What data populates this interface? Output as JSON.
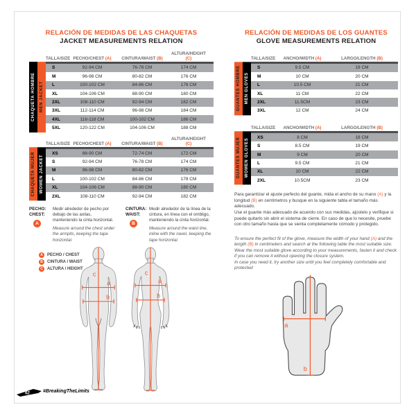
{
  "accent_orange": "#f05a28",
  "row_gray": "#a7a9ac",
  "jackets": {
    "title_es": "RELACIÓN DE MEDIDAS DE LAS CHAQUETAS",
    "title_en": "JACKET MEASUREMENTS RELATION",
    "header": {
      "size": "TALLA/SIZE",
      "chest": "PECHO/CHEST",
      "chest_letter": "(A)",
      "waist": "CINTURA/WAIST",
      "waist_letter": "(B)",
      "height": "ALTURA/HEIGHT",
      "height_letter": "(C)"
    },
    "men": {
      "strip_es": "CHAQUETA HOMBRE",
      "strip_en": "MEN JACKET",
      "rows": [
        [
          "S",
          "92-94 CM",
          "76-78 CM",
          "174 CM"
        ],
        [
          "M",
          "96-98 CM",
          "80-82 CM",
          "176 CM"
        ],
        [
          "L",
          "100-102 CM",
          "84-86 CM",
          "178 CM"
        ],
        [
          "XL",
          "104-106 CM",
          "88-90 CM",
          "180 CM"
        ],
        [
          "2XL",
          "108-110 CM",
          "92-94 CM",
          "182 CM"
        ],
        [
          "3XL",
          "112-114 CM",
          "96-98 CM",
          "184 CM"
        ],
        [
          "4XL",
          "116-118 CM",
          "100-102 CM",
          "186 CM"
        ],
        [
          "5XL",
          "120-122 CM",
          "104-106 CM",
          "188 CM"
        ]
      ]
    },
    "women": {
      "strip_es": "CHAQUETA MUJER",
      "strip_en": "WOMEN JACKET",
      "rows": [
        [
          "XS",
          "88-90 CM",
          "72-74 CM",
          "172 CM"
        ],
        [
          "S",
          "92-94 CM",
          "76-78 CM",
          "174 CM"
        ],
        [
          "M",
          "96-98 CM",
          "80-82 CM",
          "176 CM"
        ],
        [
          "L",
          "100-102 CM",
          "84-86 CM",
          "178 CM"
        ],
        [
          "XL",
          "104-106 CM",
          "88-90 CM",
          "180 CM"
        ],
        [
          "2XL",
          "108-110 CM",
          "92-94 CM",
          "182 CM"
        ]
      ]
    }
  },
  "gloves": {
    "title_es": "RELACIÓN DE MEDIDAS DE LOS GUANTES",
    "title_en": "GLOVE MEASUREMENTS RELATION",
    "header": {
      "size": "TALLA/SIZE",
      "width": "ANCHO/WIDTH",
      "width_letter": "(A)",
      "length": "LARGO/LENGTH",
      "length_letter": "(B)"
    },
    "men": {
      "strip_es": "GUANTES HOMBRE",
      "strip_en": "MEN GLOVES",
      "rows": [
        [
          "S",
          "9.5 CM",
          "19 CM"
        ],
        [
          "M",
          "10 CM",
          "20 CM"
        ],
        [
          "L",
          "10.5 CM",
          "21 CM"
        ],
        [
          "XL",
          "11 CM",
          "22 CM"
        ],
        [
          "2XL",
          "11.5CM",
          "23 CM"
        ],
        [
          "3XL",
          "12 CM",
          "24 CM"
        ]
      ]
    },
    "women": {
      "strip_es": "GUANTES MUJER",
      "strip_en": "WOMEN GLOVES",
      "rows": [
        [
          "XS",
          "8 CM",
          "18 CM"
        ],
        [
          "S",
          "8.5 CM",
          "19 CM"
        ],
        [
          "M",
          "9 CM",
          "20 CM"
        ],
        [
          "L",
          "9.5 CM",
          "21 CM"
        ],
        [
          "XL",
          "10 CM",
          "22 CM"
        ],
        [
          "2XL",
          "10.5CM",
          "23 CM"
        ]
      ]
    },
    "note_es": {
      "p1a": "Para garantizar el ajuste perfecto del guante, mida el ancho de su mano ",
      "pA": "(A)",
      "p1b": " y la longitud ",
      "pB": "(B)",
      "p1c": " en centímetros y busque en la siguiente tabla el tamaño más adecuado.",
      "p2": "Use el guante más adecuado de acuerdo con sus medidas, ajústelo y verifique si puede quitarlo sin abrir el sistema de cierre. En caso de que lo necesite, pruebe con otro tamaño hasta que se sienta completamente cómodo y protegido."
    },
    "note_en": {
      "p1a": "To ensure the perfect fit of the glove, measure the width of your hand ",
      "pA": "(A)",
      "p1b": " and the length ",
      "pB": "(B)",
      "p1c": " in centimeters and search at the following table the most suitable size.  Wear the most suitable glove according to your measurements, fasten it and check if you can remove it without opening the closure system.",
      "p2": "In case you need it, try another size until you feel completely comfortable and protected"
    }
  },
  "measure_guide": {
    "chest": {
      "label_es": "PECHO:",
      "label_en": "CHEST:",
      "letter": "A",
      "text_es": "Medir alrededor de pecho por debajo de las axilas, manteniendo la cinta horizontal.",
      "text_en": "Measure around the chest under the armpits, keeping the tape horizontal."
    },
    "waist": {
      "label_es": "CINTURA:",
      "label_en": "WAIST:",
      "letter": "B",
      "text_es": "Medir alrededor de la línea de la cintura, en línea con el ombligo, manteniendo la cinta horizontal.",
      "text_en": "Measure around the waist line, inline with the navel, keeping the tape horizontal."
    }
  },
  "legend": [
    {
      "letter": "A",
      "label": "PECHO / CHEST"
    },
    {
      "letter": "B",
      "label": "CINTURA / WAIST"
    },
    {
      "letter": "C",
      "label": "ALTURA / HEIGHT"
    }
  ],
  "figure_labels": {
    "a": "a",
    "b": "b",
    "c": "c"
  },
  "footer": {
    "page_number": "62",
    "hashtag": "#BreakingTheLimits"
  }
}
